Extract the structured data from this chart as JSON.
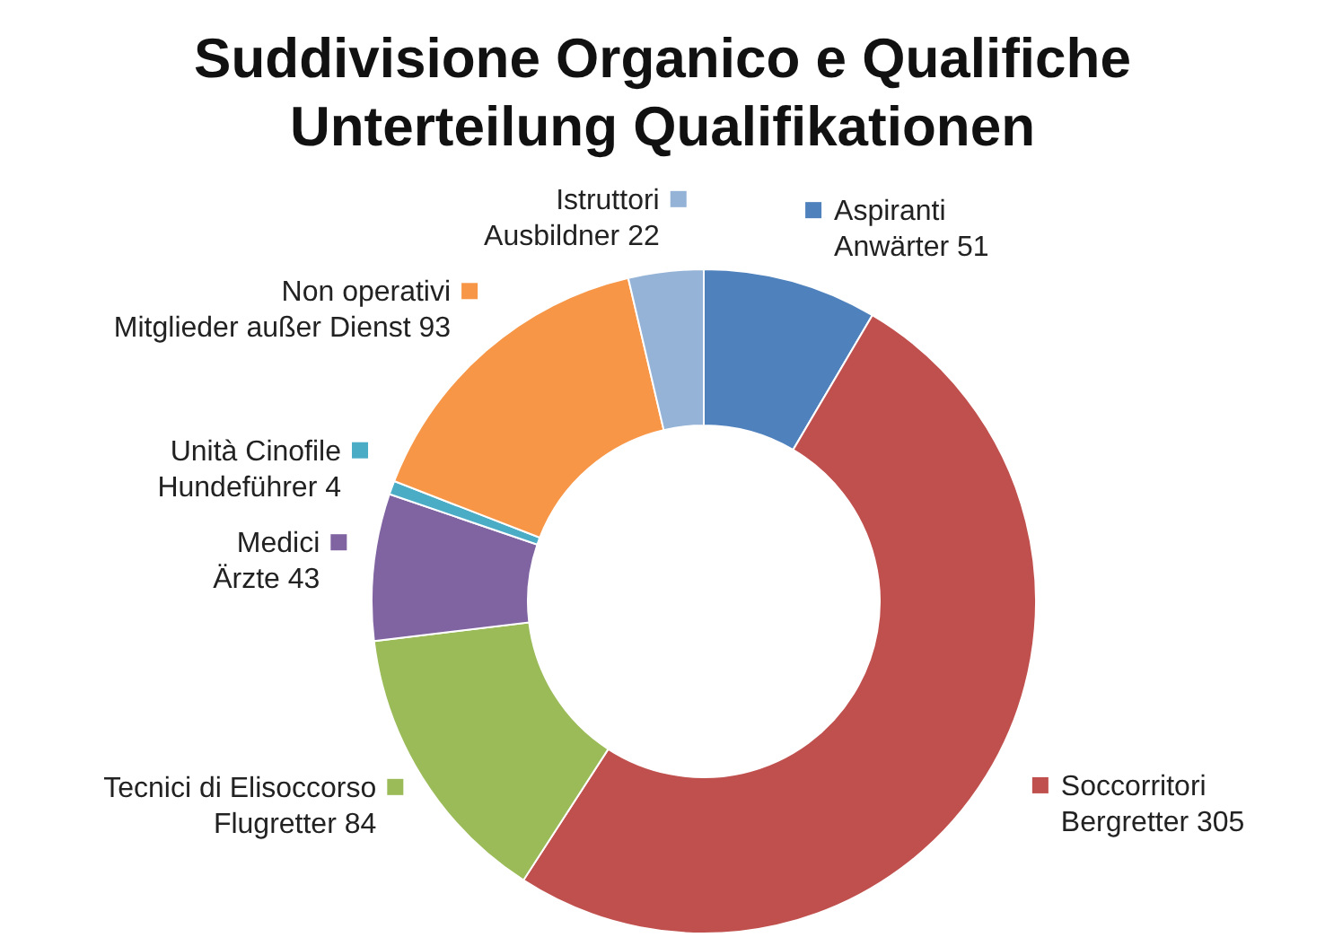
{
  "chart_data": {
    "type": "donut",
    "title": "Suddivisione Organico e Qualifiche\nUnterteilung Qualifikationen",
    "categories": [
      "Aspiranti\nAnwärter 51",
      "Soccorritori\nBergretter 305",
      "Tecnici di Elisoccorso\nFlugretter 84",
      "Medici\nÄrzte 43",
      "Unità Cinofile\nHundeführer 4",
      "Non operativi\nMitglieder außer Dienst 93",
      "Istruttori\nAusbildner 22"
    ],
    "values": [
      51,
      305,
      84,
      43,
      4,
      93,
      22
    ],
    "colors": [
      "#4f81bd",
      "#c0504d",
      "#9bbb59",
      "#8064a2",
      "#4bacc6",
      "#f79646",
      "#95b3d7"
    ],
    "legend": "left"
  }
}
